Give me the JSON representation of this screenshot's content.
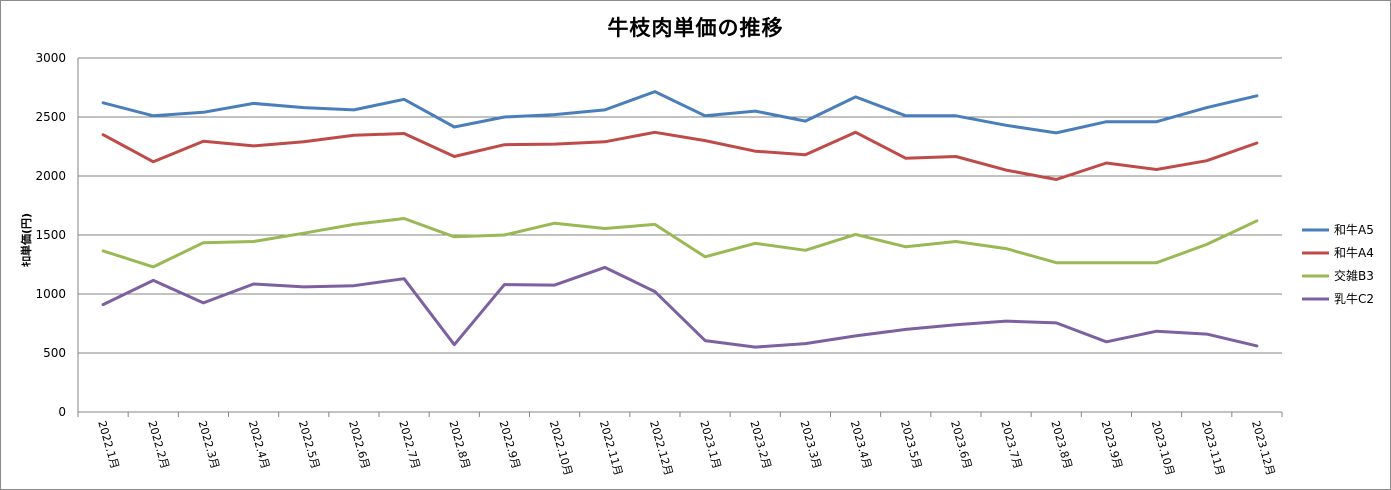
{
  "chart_data": {
    "type": "line",
    "title": "牛枝肉単価の推移",
    "xlabel": "",
    "ylabel": "ｷﾛ単価(円)",
    "ylim": [
      0,
      3000
    ],
    "yticks": [
      0,
      500,
      1000,
      1500,
      2000,
      2500,
      3000
    ],
    "grid": true,
    "legend_position": "right",
    "categories": [
      "2022.1月",
      "2022.2月",
      "2022.3月",
      "2022.4月",
      "2022.5月",
      "2022.6月",
      "2022.7月",
      "2022.8月",
      "2022.9月",
      "2022.10月",
      "2022.11月",
      "2022.12月",
      "2023.1月",
      "2023.2月",
      "2023.3月",
      "2023.4月",
      "2023.5月",
      "2023.6月",
      "2023.7月",
      "2023.8月",
      "2023.9月",
      "2023.10月",
      "2023.11月",
      "2023.12月"
    ],
    "series": [
      {
        "name": "和牛A5",
        "color": "#4a7ebb",
        "values": [
          2620,
          2510,
          2540,
          2615,
          2580,
          2560,
          2650,
          2415,
          2500,
          2520,
          2560,
          2715,
          2510,
          2550,
          2465,
          2670,
          2510,
          2510,
          2430,
          2365,
          2460,
          2460,
          2580,
          2680
        ]
      },
      {
        "name": "和牛A4",
        "color": "#be4b48",
        "values": [
          2350,
          2120,
          2295,
          2255,
          2290,
          2345,
          2360,
          2165,
          2265,
          2270,
          2290,
          2370,
          2300,
          2210,
          2180,
          2370,
          2150,
          2165,
          2050,
          1970,
          2110,
          2055,
          2130,
          2280
        ]
      },
      {
        "name": "交雑B3",
        "color": "#98b954",
        "values": [
          1365,
          1230,
          1435,
          1445,
          1515,
          1590,
          1640,
          1485,
          1500,
          1600,
          1555,
          1590,
          1315,
          1430,
          1370,
          1505,
          1400,
          1445,
          1385,
          1265,
          1265,
          1265,
          1420,
          1620
        ]
      },
      {
        "name": "乳牛C2",
        "color": "#7d60a0",
        "values": [
          910,
          1115,
          925,
          1085,
          1060,
          1070,
          1130,
          570,
          1080,
          1075,
          1225,
          1020,
          605,
          550,
          580,
          645,
          700,
          740,
          770,
          755,
          595,
          685,
          660,
          560
        ]
      }
    ]
  }
}
